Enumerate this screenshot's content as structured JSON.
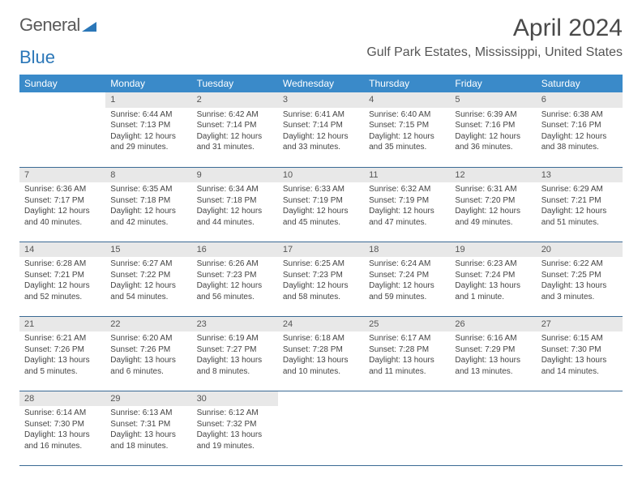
{
  "logo": {
    "text1": "General",
    "text2": "Blue"
  },
  "title": "April 2024",
  "location": "Gulf Park Estates, Mississippi, United States",
  "weekdays": [
    "Sunday",
    "Monday",
    "Tuesday",
    "Wednesday",
    "Thursday",
    "Friday",
    "Saturday"
  ],
  "colors": {
    "header_bg": "#3a8ac9",
    "header_fg": "#ffffff",
    "daynum_bg": "#e8e8e8",
    "border": "#3a6a94",
    "logo_blue": "#2b77b8",
    "text": "#444444"
  },
  "start_weekday": 1,
  "days": [
    {
      "n": 1,
      "sunrise": "6:44 AM",
      "sunset": "7:13 PM",
      "daylight": "12 hours and 29 minutes."
    },
    {
      "n": 2,
      "sunrise": "6:42 AM",
      "sunset": "7:14 PM",
      "daylight": "12 hours and 31 minutes."
    },
    {
      "n": 3,
      "sunrise": "6:41 AM",
      "sunset": "7:14 PM",
      "daylight": "12 hours and 33 minutes."
    },
    {
      "n": 4,
      "sunrise": "6:40 AM",
      "sunset": "7:15 PM",
      "daylight": "12 hours and 35 minutes."
    },
    {
      "n": 5,
      "sunrise": "6:39 AM",
      "sunset": "7:16 PM",
      "daylight": "12 hours and 36 minutes."
    },
    {
      "n": 6,
      "sunrise": "6:38 AM",
      "sunset": "7:16 PM",
      "daylight": "12 hours and 38 minutes."
    },
    {
      "n": 7,
      "sunrise": "6:36 AM",
      "sunset": "7:17 PM",
      "daylight": "12 hours and 40 minutes."
    },
    {
      "n": 8,
      "sunrise": "6:35 AM",
      "sunset": "7:18 PM",
      "daylight": "12 hours and 42 minutes."
    },
    {
      "n": 9,
      "sunrise": "6:34 AM",
      "sunset": "7:18 PM",
      "daylight": "12 hours and 44 minutes."
    },
    {
      "n": 10,
      "sunrise": "6:33 AM",
      "sunset": "7:19 PM",
      "daylight": "12 hours and 45 minutes."
    },
    {
      "n": 11,
      "sunrise": "6:32 AM",
      "sunset": "7:19 PM",
      "daylight": "12 hours and 47 minutes."
    },
    {
      "n": 12,
      "sunrise": "6:31 AM",
      "sunset": "7:20 PM",
      "daylight": "12 hours and 49 minutes."
    },
    {
      "n": 13,
      "sunrise": "6:29 AM",
      "sunset": "7:21 PM",
      "daylight": "12 hours and 51 minutes."
    },
    {
      "n": 14,
      "sunrise": "6:28 AM",
      "sunset": "7:21 PM",
      "daylight": "12 hours and 52 minutes."
    },
    {
      "n": 15,
      "sunrise": "6:27 AM",
      "sunset": "7:22 PM",
      "daylight": "12 hours and 54 minutes."
    },
    {
      "n": 16,
      "sunrise": "6:26 AM",
      "sunset": "7:23 PM",
      "daylight": "12 hours and 56 minutes."
    },
    {
      "n": 17,
      "sunrise": "6:25 AM",
      "sunset": "7:23 PM",
      "daylight": "12 hours and 58 minutes."
    },
    {
      "n": 18,
      "sunrise": "6:24 AM",
      "sunset": "7:24 PM",
      "daylight": "12 hours and 59 minutes."
    },
    {
      "n": 19,
      "sunrise": "6:23 AM",
      "sunset": "7:24 PM",
      "daylight": "13 hours and 1 minute."
    },
    {
      "n": 20,
      "sunrise": "6:22 AM",
      "sunset": "7:25 PM",
      "daylight": "13 hours and 3 minutes."
    },
    {
      "n": 21,
      "sunrise": "6:21 AM",
      "sunset": "7:26 PM",
      "daylight": "13 hours and 5 minutes."
    },
    {
      "n": 22,
      "sunrise": "6:20 AM",
      "sunset": "7:26 PM",
      "daylight": "13 hours and 6 minutes."
    },
    {
      "n": 23,
      "sunrise": "6:19 AM",
      "sunset": "7:27 PM",
      "daylight": "13 hours and 8 minutes."
    },
    {
      "n": 24,
      "sunrise": "6:18 AM",
      "sunset": "7:28 PM",
      "daylight": "13 hours and 10 minutes."
    },
    {
      "n": 25,
      "sunrise": "6:17 AM",
      "sunset": "7:28 PM",
      "daylight": "13 hours and 11 minutes."
    },
    {
      "n": 26,
      "sunrise": "6:16 AM",
      "sunset": "7:29 PM",
      "daylight": "13 hours and 13 minutes."
    },
    {
      "n": 27,
      "sunrise": "6:15 AM",
      "sunset": "7:30 PM",
      "daylight": "13 hours and 14 minutes."
    },
    {
      "n": 28,
      "sunrise": "6:14 AM",
      "sunset": "7:30 PM",
      "daylight": "13 hours and 16 minutes."
    },
    {
      "n": 29,
      "sunrise": "6:13 AM",
      "sunset": "7:31 PM",
      "daylight": "13 hours and 18 minutes."
    },
    {
      "n": 30,
      "sunrise": "6:12 AM",
      "sunset": "7:32 PM",
      "daylight": "13 hours and 19 minutes."
    }
  ],
  "labels": {
    "sunrise": "Sunrise:",
    "sunset": "Sunset:",
    "daylight": "Daylight:"
  }
}
